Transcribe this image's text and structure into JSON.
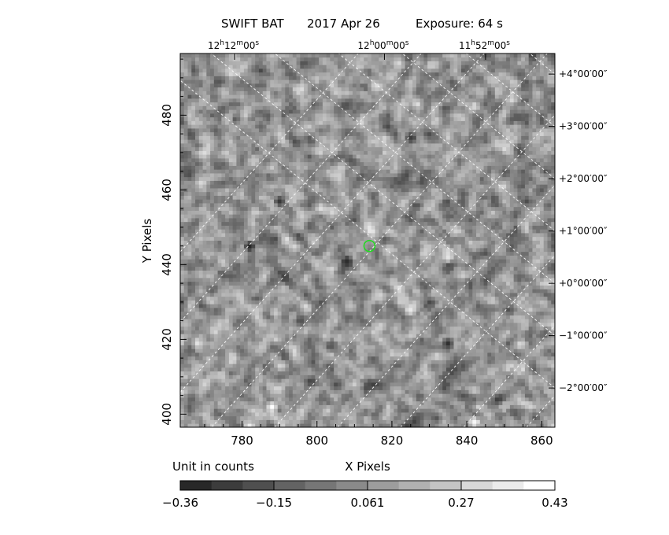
{
  "title": {
    "instrument": "SWIFT BAT",
    "date": "2017 Apr 26",
    "exposure": "Exposure: 64 s"
  },
  "colorbar": {
    "unit_label": "Unit in counts",
    "ticks": [
      "−0.36",
      "−0.15",
      "0.061",
      "0.27",
      "0.43"
    ],
    "levels": 12
  },
  "chart_data": {
    "type": "heatmap",
    "xlabel": "X Pixels",
    "ylabel": "Y Pixels",
    "xlim": [
      763.5,
      863.5
    ],
    "ylim": [
      396.5,
      496.5
    ],
    "x_ticks": [
      {
        "value": 780,
        "label": "780"
      },
      {
        "value": 800,
        "label": "800"
      },
      {
        "value": 820,
        "label": "820"
      },
      {
        "value": 840,
        "label": "840"
      },
      {
        "value": 860,
        "label": "860"
      }
    ],
    "y_ticks": [
      {
        "value": 400,
        "label": "400"
      },
      {
        "value": 420,
        "label": "420"
      },
      {
        "value": 440,
        "label": "440"
      },
      {
        "value": 460,
        "label": "460"
      },
      {
        "value": 480,
        "label": "480"
      }
    ],
    "ra_ticks": [
      {
        "x": 778,
        "h": "12",
        "m": "12",
        "s": "00"
      },
      {
        "x": 818,
        "h": "12",
        "m": "00",
        "s": "00"
      },
      {
        "x": 845,
        "h": "11",
        "m": "52",
        "s": "00"
      }
    ],
    "dec_ticks": [
      {
        "y": 491,
        "label": "+4°00′00″"
      },
      {
        "y": 477,
        "label": "+3°00′00″"
      },
      {
        "y": 463,
        "label": "+2°00′00″"
      },
      {
        "y": 449,
        "label": "+1°00′00″"
      },
      {
        "y": 435,
        "label": "+0°00′00″"
      },
      {
        "y": 421,
        "label": "−1°00′00″"
      },
      {
        "y": 407,
        "label": "−2°00′00″"
      }
    ],
    "value_range": [
      -0.36,
      0.43
    ],
    "source_marker": {
      "x": 814,
      "y": 445,
      "color": "#22dd22"
    },
    "bright_spots": [
      {
        "x": 788,
        "y": 402,
        "v": 0.43
      },
      {
        "x": 842,
        "y": 398,
        "v": 0.4
      },
      {
        "x": 825,
        "y": 428,
        "v": 0.35
      },
      {
        "x": 835,
        "y": 442,
        "v": 0.33
      },
      {
        "x": 770,
        "y": 470,
        "v": 0.3
      }
    ],
    "dark_spots": [
      {
        "x": 782,
        "y": 445,
        "v": -0.36
      },
      {
        "x": 808,
        "y": 441,
        "v": -0.34
      },
      {
        "x": 835,
        "y": 419,
        "v": -0.33
      },
      {
        "x": 790,
        "y": 457,
        "v": -0.3
      },
      {
        "x": 825,
        "y": 474,
        "v": -0.28
      }
    ]
  }
}
